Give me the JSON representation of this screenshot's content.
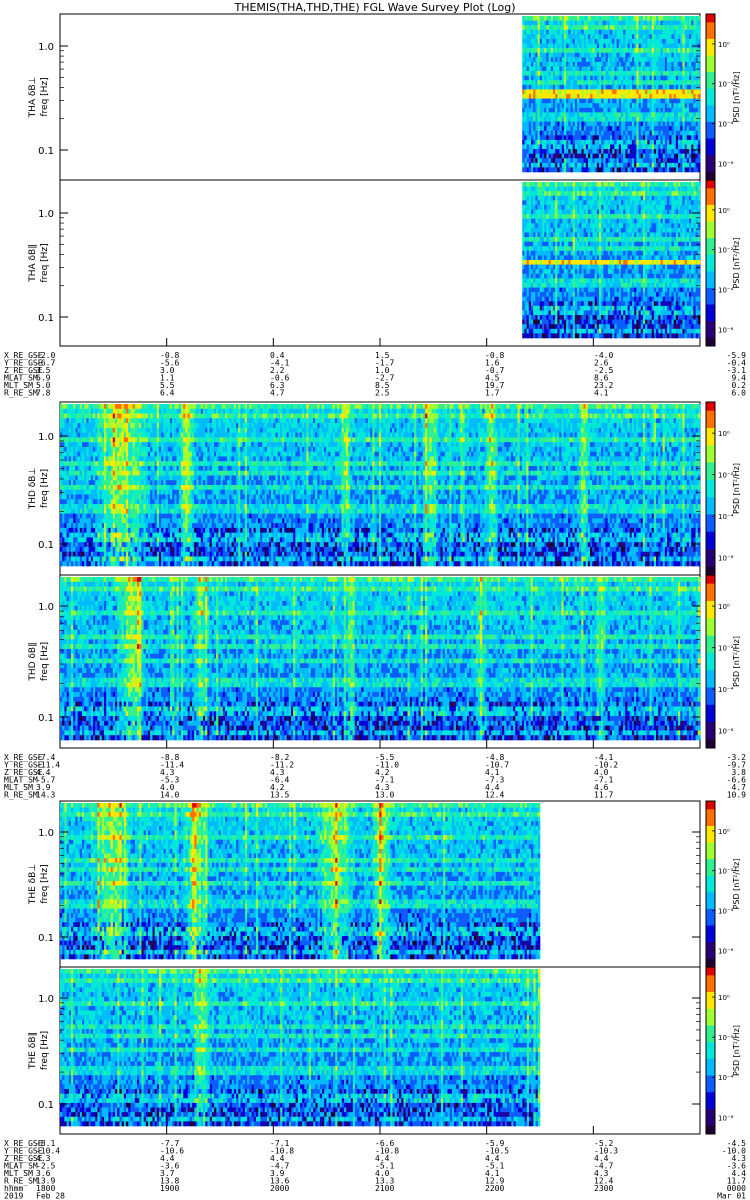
{
  "title": "THEMIS(THA,THD,THE) FGL Wave Survey Plot (Log)",
  "colorbar_label": "PSD [nT²/Hz]",
  "colorbar_ticks": [
    "10⁰",
    "10⁻²",
    "10⁻⁴",
    "10⁻⁶"
  ],
  "chart_data": {
    "type": "heatmap",
    "x_axis": "hhmm",
    "y_scale": "log",
    "z_scale": "log",
    "freq_range_hz": [
      0.06,
      1.6
    ],
    "colormap": [
      "#1e0034",
      "#2a0078",
      "#0000d8",
      "#0c5cff",
      "#00bcff",
      "#00e8d8",
      "#30f090",
      "#a0ff30",
      "#ffe800",
      "#ff7000",
      "#e00000"
    ],
    "panels": [
      {
        "ylabel": "THA δB⊥",
        "units": "freq [Hz]",
        "ticks": [
          "1.0",
          "0.1"
        ],
        "data_time_range": [
          "2220",
          "2400"
        ]
      },
      {
        "ylabel": "THA δB∥",
        "units": "freq [Hz]",
        "ticks": [
          "1.0",
          "0.1"
        ],
        "data_time_range": [
          "2220",
          "2400"
        ]
      },
      {
        "ylabel": "THD δB⊥",
        "units": "freq [Hz]",
        "ticks": [
          "1.0",
          "0.1"
        ],
        "data_time_range": [
          "1800",
          "2400"
        ]
      },
      {
        "ylabel": "THD δB∥",
        "units": "freq [Hz]",
        "ticks": [
          "1.0",
          "0.1"
        ],
        "data_time_range": [
          "1800",
          "2400"
        ]
      },
      {
        "ylabel": "THE δB⊥",
        "units": "freq [Hz]",
        "ticks": [
          "1.0",
          "0.1"
        ],
        "data_time_range": [
          "1800",
          "2230"
        ]
      },
      {
        "ylabel": "THE δB∥",
        "units": "freq [Hz]",
        "ticks": [
          "1.0",
          "0.1"
        ],
        "data_time_range": [
          "1800",
          "2230"
        ]
      }
    ],
    "ephemeris_blocks": [
      {
        "rows": [
          {
            "label": "X_RE_GSE",
            "values": [
              "-2.0",
              "-0.8",
              "0.4",
              "1.5",
              "-0.8",
              "-4.0",
              "-5.9"
            ]
          },
          {
            "label": "Y_RE_GSE",
            "values": [
              "-6.7",
              "-5.6",
              "-4.1",
              "-1.7",
              "1.6",
              "2.6",
              "-0.4"
            ]
          },
          {
            "label": "Z_RE_GSE",
            "values": [
              "3.5",
              "3.0",
              "2.2",
              "1.0",
              "-0.7",
              "-2.5",
              "-3.1"
            ]
          },
          {
            "label": "MLAT_SM",
            "values": [
              "6.9",
              "1.1",
              "-0.6",
              "-2.7",
              "4.5",
              "8.6",
              "9.4"
            ]
          },
          {
            "label": "MLT_SM",
            "values": [
              "5.0",
              "5.5",
              "6.3",
              "8.5",
              "19.7",
              "23.2",
              "0.2"
            ]
          },
          {
            "label": "R_RE_SM",
            "values": [
              "7.8",
              "6.4",
              "4.7",
              "2.5",
              "1.7",
              "4.1",
              "6.0"
            ]
          }
        ]
      },
      {
        "rows": [
          {
            "label": "X_RE_GSE",
            "values": [
              "-7.4",
              "-8.8",
              "-8.2",
              "-5.5",
              "-4.8",
              "-4.1",
              "-3.2"
            ]
          },
          {
            "label": "Y_RE_GSE",
            "values": [
              "-11.4",
              "-11.4",
              "-11.2",
              "-11.0",
              "-10.7",
              "-10.2",
              "-9.7"
            ]
          },
          {
            "label": "Z_RE_GSE",
            "values": [
              "4.4",
              "4.3",
              "4.3",
              "4.2",
              "4.1",
              "4.0",
              "3.8"
            ]
          },
          {
            "label": "MLAT_SM",
            "values": [
              "-5.7",
              "-5.3",
              "-6.4",
              "-7.1",
              "-7.3",
              "-7.1",
              "-6.6"
            ]
          },
          {
            "label": "MLT_SM",
            "values": [
              "3.9",
              "4.0",
              "4.2",
              "4.3",
              "4.4",
              "4.6",
              "4.7"
            ]
          },
          {
            "label": "R_RE_SM",
            "values": [
              "14.3",
              "14.0",
              "13.5",
              "13.0",
              "12.4",
              "11.7",
              "10.9"
            ]
          }
        ]
      },
      {
        "rows": [
          {
            "label": "X_RE_GSE",
            "values": [
              "-8.1",
              "-7.7",
              "-7.1",
              "-6.6",
              "-5.9",
              "-5.2",
              "-4.5"
            ]
          },
          {
            "label": "Y_RE_GSE",
            "values": [
              "-10.4",
              "-10.6",
              "-10.8",
              "-10.8",
              "-10.5",
              "-10.3",
              "-10.0"
            ]
          },
          {
            "label": "Z_RE_GSE",
            "values": [
              "4.3",
              "4.4",
              "4.4",
              "4.4",
              "4.4",
              "4.4",
              "4.3"
            ]
          },
          {
            "label": "MLAT_SM",
            "values": [
              "-2.5",
              "-3.6",
              "-4.7",
              "-5.1",
              "-5.1",
              "-4.7",
              "-3.6"
            ]
          },
          {
            "label": "MLT_SM",
            "values": [
              "3.6",
              "3.7",
              "3.9",
              "4.0",
              "4.1",
              "4.3",
              "4.4"
            ]
          },
          {
            "label": "R_RE_SM",
            "values": [
              "13.9",
              "13.8",
              "13.6",
              "13.3",
              "12.9",
              "12.4",
              "11.7"
            ]
          },
          {
            "label": "hhmm",
            "values": [
              "1800",
              "1900",
              "2000",
              "2100",
              "2200",
              "2300",
              "0000"
            ]
          },
          {
            "label": "2019",
            "values": [
              "Feb 28",
              "",
              "",
              "",
              "",
              "",
              "Mar 01"
            ]
          }
        ]
      }
    ]
  }
}
